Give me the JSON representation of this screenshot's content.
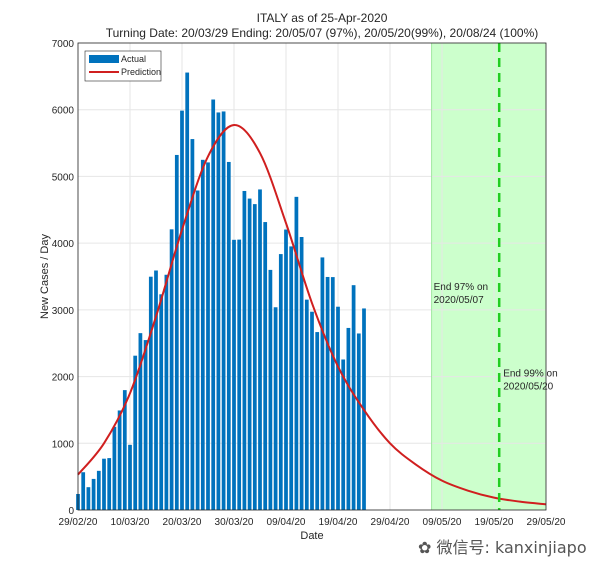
{
  "chart_data": {
    "type": "bar+line",
    "title": "ITALY as of 25-Apr-2020",
    "subtitle": "Turning Date: 20/03/29  Ending: 20/05/07 (97%), 20/05/20(99%), 20/08/24 (100%)",
    "xlabel": "Date",
    "ylabel": "New Cases / Day",
    "ylim": [
      0,
      7000
    ],
    "yticks": [
      0,
      1000,
      2000,
      3000,
      4000,
      5000,
      6000,
      7000
    ],
    "xlim": [
      "2020-02-29",
      "2020-05-29"
    ],
    "xtick_labels": [
      "29/02/20",
      "10/03/20",
      "20/03/20",
      "30/03/20",
      "09/04/20",
      "19/04/20",
      "29/04/20",
      "09/05/20",
      "19/05/20",
      "29/05/20"
    ],
    "grid": true,
    "legend": {
      "placement": "top-left",
      "entries": [
        "Actual",
        "Prediction"
      ]
    },
    "colors": {
      "actual": "#0072BD",
      "prediction": "#D01F1F",
      "shade": "#CCFFCC",
      "end99_line": "#22CC22"
    },
    "actual": {
      "name": "Actual",
      "start_date": "2020-02-29",
      "values": [
        240,
        566,
        342,
        466,
        587,
        769,
        778,
        1247,
        1492,
        1797,
        977,
        2313,
        2651,
        2547,
        3497,
        3590,
        3233,
        3526,
        4207,
        5322,
        5986,
        6557,
        5560,
        4789,
        5249,
        5210,
        6153,
        5959,
        5974,
        5217,
        4050,
        4053,
        4782,
        4668,
        4585,
        4805,
        4316,
        3599,
        3039,
        3836,
        4204,
        3951,
        4694,
        4092,
        3153,
        2972,
        2667,
        3786,
        3493,
        3491,
        3047,
        2256,
        2729,
        3370,
        2646,
        3021
      ]
    },
    "prediction": {
      "name": "Prediction",
      "points": [
        [
          "2020-02-29",
          530
        ],
        [
          "2020-03-05",
          1000
        ],
        [
          "2020-03-10",
          1750
        ],
        [
          "2020-03-15",
          2900
        ],
        [
          "2020-03-20",
          4200
        ],
        [
          "2020-03-25",
          5300
        ],
        [
          "2020-03-30",
          5770
        ],
        [
          "2020-04-04",
          5350
        ],
        [
          "2020-04-09",
          4300
        ],
        [
          "2020-04-14",
          3100
        ],
        [
          "2020-04-19",
          2150
        ],
        [
          "2020-04-24",
          1500
        ],
        [
          "2020-04-29",
          1000
        ],
        [
          "2020-05-04",
          680
        ],
        [
          "2020-05-09",
          440
        ],
        [
          "2020-05-14",
          290
        ],
        [
          "2020-05-19",
          185
        ],
        [
          "2020-05-24",
          125
        ],
        [
          "2020-05-29",
          85
        ]
      ]
    },
    "shaded_region": [
      "2020-05-07",
      "2020-05-29"
    ],
    "end97_date": "2020-05-07",
    "end99_date": "2020-05-20",
    "annotations": [
      {
        "date": "2020-05-07",
        "value": 3300,
        "lines": [
          "End 97% on",
          "2020/05/07"
        ]
      },
      {
        "date": "2020-05-20",
        "value": 2000,
        "lines": [
          "End 99% on",
          "2020/05/20"
        ]
      }
    ]
  },
  "watermark": "微信号: kanxinjiapo"
}
